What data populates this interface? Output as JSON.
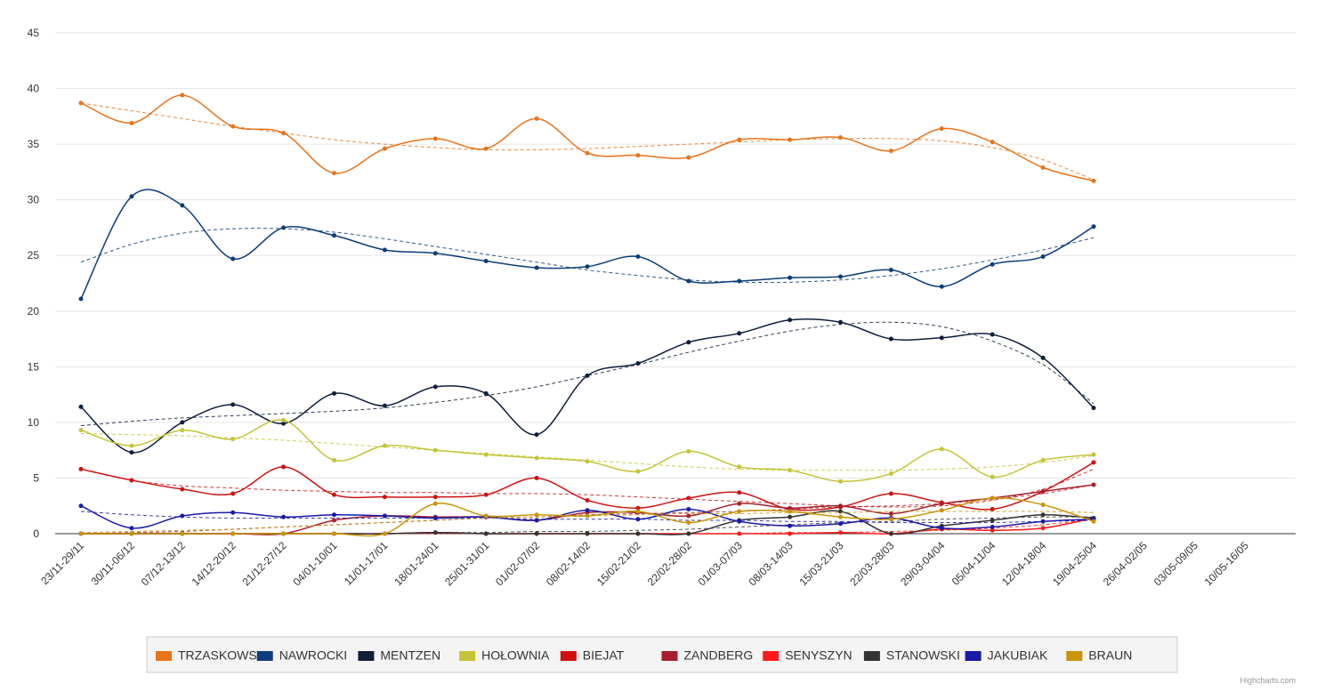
{
  "chart_data": {
    "type": "line",
    "smooth": true,
    "grid": true,
    "categories": [
      "23/11-29/11",
      "30/11-06/12",
      "07/12-13/12",
      "14/12-20/12",
      "21/12-27/12",
      "04/01-10/01",
      "11/01-17/01",
      "18/01-24/01",
      "25/01-31/01",
      "01/02-07/02",
      "08/02-14/02",
      "15/02-21/02",
      "22/02-28/02",
      "01/03-07/03",
      "08/03-14/03",
      "15/03-21/03",
      "22/03-28/03",
      "29/03-04/04",
      "05/04-11/04",
      "12/04-18/04",
      "19/04-25/04",
      "26/04-02/05",
      "03/05-09/05",
      "10/05-16/05"
    ],
    "ylim": [
      0,
      45
    ],
    "yticks": [
      0,
      5,
      10,
      15,
      20,
      25,
      30,
      35,
      40,
      45
    ],
    "credits": "Highcharts.com",
    "series": [
      {
        "name": "TRZASKOWSKI",
        "color": "#e8731a",
        "values": [
          38.7,
          36.9,
          39.4,
          36.6,
          36.0,
          32.4,
          34.6,
          35.5,
          34.6,
          37.3,
          34.2,
          34.0,
          33.8,
          35.4,
          35.4,
          35.6,
          34.4,
          36.4,
          35.2,
          32.9,
          31.7,
          null,
          null,
          null
        ],
        "trend": [
          38.7,
          38.0,
          37.3,
          36.6,
          36.0,
          35.4,
          35.0,
          34.7,
          34.5,
          34.5,
          34.6,
          34.8,
          35.0,
          35.2,
          35.4,
          35.5,
          35.5,
          35.3,
          34.7,
          33.6,
          31.8,
          null,
          null,
          null
        ]
      },
      {
        "name": "NAWROCKI",
        "color": "#0d3d7a",
        "values": [
          21.1,
          30.3,
          29.5,
          24.7,
          27.5,
          26.8,
          25.5,
          25.2,
          24.5,
          23.9,
          24.0,
          24.9,
          22.7,
          22.7,
          23.0,
          23.1,
          23.7,
          22.2,
          24.2,
          24.9,
          27.6,
          null,
          null,
          null
        ],
        "trend": [
          24.4,
          26.0,
          27.0,
          27.4,
          27.4,
          27.1,
          26.5,
          25.8,
          25.1,
          24.4,
          23.7,
          23.2,
          22.8,
          22.6,
          22.6,
          22.8,
          23.2,
          23.8,
          24.6,
          25.5,
          26.6,
          null,
          null,
          null
        ]
      },
      {
        "name": "MENTZEN",
        "color": "#0f1f3a",
        "values": [
          11.4,
          7.3,
          10.0,
          11.6,
          9.9,
          12.6,
          11.5,
          13.2,
          12.6,
          8.9,
          14.2,
          15.3,
          17.2,
          18.0,
          19.2,
          19.0,
          17.5,
          17.6,
          17.9,
          15.8,
          11.3,
          null,
          null,
          null
        ],
        "trend": [
          9.7,
          10.1,
          10.4,
          10.6,
          10.8,
          11.0,
          11.3,
          11.8,
          12.4,
          13.2,
          14.2,
          15.2,
          16.3,
          17.3,
          18.2,
          18.8,
          19.0,
          18.6,
          17.3,
          15.2,
          11.7,
          null,
          null,
          null
        ]
      },
      {
        "name": "HOŁOWNIA",
        "color": "#c4c437",
        "values": [
          9.3,
          7.9,
          9.3,
          8.5,
          10.2,
          6.6,
          7.9,
          7.5,
          7.1,
          6.8,
          6.5,
          5.6,
          7.4,
          6.0,
          5.7,
          4.7,
          5.4,
          7.6,
          5.1,
          6.6,
          7.1,
          null,
          null,
          null
        ],
        "trend": [
          9.0,
          8.9,
          8.8,
          8.6,
          8.4,
          8.1,
          7.8,
          7.5,
          7.2,
          6.9,
          6.6,
          6.3,
          6.0,
          5.8,
          5.7,
          5.7,
          5.7,
          5.8,
          6.0,
          6.4,
          7.0,
          null,
          null,
          null
        ]
      },
      {
        "name": "BIEJAT",
        "color": "#d01010",
        "values": [
          5.8,
          4.8,
          4.0,
          3.6,
          6.0,
          3.5,
          3.3,
          3.3,
          3.5,
          5.0,
          3.0,
          2.3,
          3.2,
          3.7,
          2.2,
          2.4,
          3.6,
          2.8,
          2.2,
          3.8,
          6.4,
          null,
          null,
          null
        ],
        "trend": [
          5.8,
          4.8,
          4.3,
          4.1,
          3.9,
          3.8,
          3.7,
          3.7,
          3.6,
          3.6,
          3.5,
          3.3,
          3.1,
          2.9,
          2.7,
          2.5,
          2.4,
          2.5,
          3.0,
          4.0,
          5.8,
          null,
          null,
          null
        ]
      },
      {
        "name": "ZANDBERG",
        "color": "#a81f2b",
        "values": [
          0,
          0,
          0,
          0,
          0,
          1.2,
          1.6,
          1.5,
          1.5,
          1.2,
          1.9,
          1.9,
          1.6,
          2.7,
          2.3,
          2.5,
          1.8,
          2.7,
          3.2,
          3.8,
          4.4,
          null,
          null,
          null
        ],
        "trend": [
          0,
          0.1,
          0.2,
          0.4,
          0.6,
          0.8,
          1.0,
          1.2,
          1.4,
          1.5,
          1.7,
          1.8,
          1.9,
          2.0,
          2.2,
          2.4,
          2.5,
          2.7,
          3.1,
          3.6,
          4.4,
          null,
          null,
          null
        ]
      },
      {
        "name": "SENYSZYN",
        "color": "#ff1a1a",
        "values": [
          0,
          0,
          0,
          0,
          0,
          0,
          0,
          0.1,
          0,
          0,
          0,
          0,
          0,
          0,
          0,
          0.1,
          0,
          0.4,
          0.3,
          0.5,
          1.4,
          null,
          null,
          null
        ],
        "trend": [
          0,
          0,
          0,
          0,
          0,
          0,
          0,
          0,
          0,
          0,
          0,
          0,
          0,
          0,
          0.1,
          0.1,
          0.2,
          0.3,
          0.5,
          0.8,
          1.3,
          null,
          null,
          null
        ]
      },
      {
        "name": "STANOWSKI",
        "color": "#333333",
        "values": [
          0,
          0,
          0,
          0,
          0,
          0,
          0,
          0.1,
          0,
          0,
          0,
          0,
          0,
          1.2,
          1.5,
          2.0,
          0,
          0.7,
          1.2,
          1.7,
          1.4,
          null,
          null,
          null
        ],
        "trend": [
          0,
          0,
          0,
          0,
          0,
          0,
          0,
          0.1,
          0.1,
          0.2,
          0.2,
          0.3,
          0.4,
          0.6,
          0.8,
          1.0,
          1.1,
          1.3,
          1.4,
          1.5,
          1.5,
          null,
          null,
          null
        ]
      },
      {
        "name": "JAKUBIAK",
        "color": "#1a1aa8",
        "values": [
          2.5,
          0.5,
          1.6,
          1.9,
          1.5,
          1.7,
          1.6,
          1.4,
          1.5,
          1.2,
          2.1,
          1.3,
          2.2,
          1.1,
          0.7,
          0.9,
          1.4,
          0.5,
          0.6,
          1.1,
          1.3,
          null,
          null,
          null
        ],
        "trend": [
          2.0,
          1.7,
          1.5,
          1.4,
          1.4,
          1.4,
          1.4,
          1.4,
          1.4,
          1.3,
          1.3,
          1.3,
          1.2,
          1.2,
          1.1,
          1.1,
          1.0,
          1.0,
          1.0,
          1.1,
          1.2,
          null,
          null,
          null
        ]
      },
      {
        "name": "BRAUN",
        "color": "#c8940a",
        "values": [
          0,
          0,
          0,
          0,
          0,
          0,
          0,
          2.7,
          1.6,
          1.7,
          1.6,
          2.0,
          1.0,
          2.0,
          2.0,
          1.5,
          1.3,
          2.1,
          3.2,
          2.6,
          1.1,
          null,
          null,
          null
        ],
        "trend": [
          0.1,
          0.2,
          0.3,
          0.4,
          0.6,
          0.8,
          1.0,
          1.2,
          1.4,
          1.5,
          1.6,
          1.7,
          1.8,
          1.8,
          1.9,
          1.9,
          2.0,
          2.0,
          2.0,
          2.0,
          1.9,
          null,
          null,
          null
        ]
      }
    ]
  }
}
